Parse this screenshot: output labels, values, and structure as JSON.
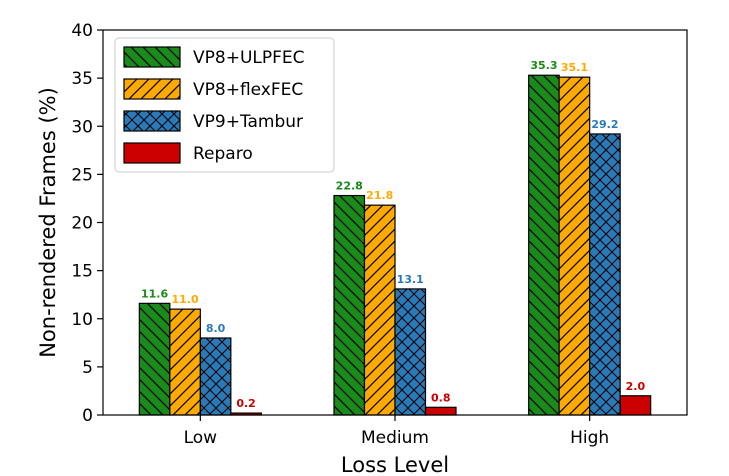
{
  "chart_data": {
    "type": "bar",
    "title": "",
    "xlabel": "Loss Level",
    "ylabel": "Non-rendered Frames (%)",
    "ylim": [
      0,
      40
    ],
    "yticks": [
      "0",
      "5",
      "10",
      "15",
      "20",
      "25",
      "30",
      "35",
      "40"
    ],
    "categories": [
      "Low",
      "Medium",
      "High"
    ],
    "legend_position": "top-left",
    "series": [
      {
        "name": "VP8+ULPFEC",
        "values": [
          11.6,
          22.8,
          35.3
        ],
        "labels": [
          "11.6",
          "22.8",
          "35.3"
        ],
        "color": "#1a8a1a",
        "label_color": "#1a8a1a",
        "hatch": "backslash"
      },
      {
        "name": "VP8+flexFEC",
        "values": [
          11.0,
          21.8,
          35.1
        ],
        "labels": [
          "11.0",
          "21.8",
          "35.1"
        ],
        "color": "#ffaa00",
        "label_color": "#ffaa00",
        "hatch": "slash"
      },
      {
        "name": "VP9+Tambur",
        "values": [
          8.0,
          13.1,
          29.2
        ],
        "labels": [
          "8.0",
          "13.1",
          "29.2"
        ],
        "color": "#2a7ab8",
        "label_color": "#2a7ab8",
        "hatch": "cross"
      },
      {
        "name": "Reparo",
        "values": [
          0.2,
          0.8,
          2.0
        ],
        "labels": [
          "0.2",
          "0.8",
          "2.0"
        ],
        "color": "#cc0000",
        "label_color": "#cc0000",
        "hatch": "none"
      }
    ]
  }
}
